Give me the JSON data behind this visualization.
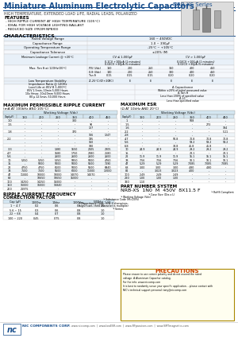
{
  "title": "Miniature Aluminum Electrolytic Capacitors",
  "series": "NRB-XS Series",
  "subtitle": "HIGH TEMPERATURE, EXTENDED LOAD LIFE, RADIAL LEADS, POLARIZED",
  "features_title": "FEATURES",
  "features": [
    "HIGH RIPPLE CURRENT AT HIGH TEMPERATURE (105°C)",
    "IDEAL FOR HIGH VOLTAGE LIGHTING BALLAST",
    "REDUCED SIZE (FROM NP8X0)"
  ],
  "char_title": "CHARACTERISTICS",
  "ripple_title": "MAXIMUM PERMISSIBLE RIPPLE CURRENT",
  "ripple_sub": "(mA AT 100kHz AND 105°C)",
  "esr_title": "MAXIMUM ESR",
  "esr_sub": "(Ω AT 10kHz AND 20°C)",
  "part_title": "PART NUMBER SYSTEM",
  "correction_title": "RIPPLE CURRENT FREQUENCY\nCORRECTION FACTOR",
  "title_color": "#1a4f8c",
  "bg_color": "#ffffff"
}
